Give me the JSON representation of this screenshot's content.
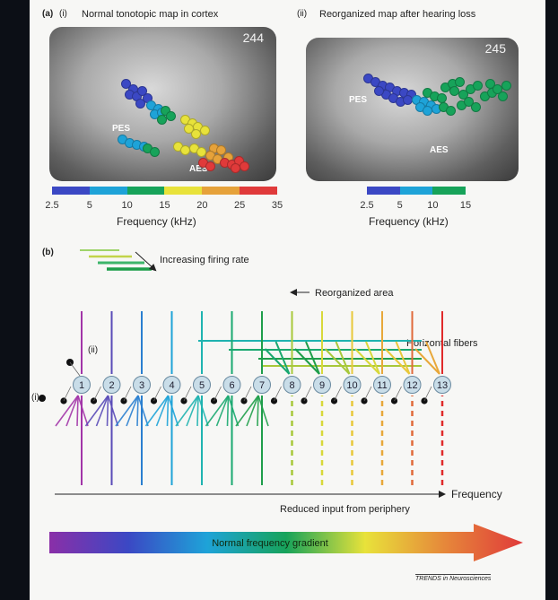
{
  "panel_a": {
    "label_a": "(a)",
    "left": {
      "tag": "(i)",
      "title": "Normal tonotopic map in cortex",
      "frame_id": "244",
      "regions": [
        "PES",
        "AES"
      ],
      "scale_colors": [
        "#3b48c4",
        "#1ea3d8",
        "#17a35a",
        "#e8e23a",
        "#e6a23a",
        "#e03a3a"
      ],
      "scale_ticks": [
        "2.5",
        "5",
        "10",
        "15",
        "20",
        "25",
        "35"
      ],
      "axis_label": "Frequency (kHz)"
    },
    "right": {
      "tag": "(ii)",
      "title": "Reorganized map after hearing loss",
      "frame_id": "245",
      "regions": [
        "PES",
        "AES"
      ],
      "scale_colors": [
        "#3b48c4",
        "#1ea3d8",
        "#17a35a"
      ],
      "scale_ticks": [
        "2.5",
        "5",
        "10",
        "15"
      ],
      "axis_label": "Frequency (kHz)"
    }
  },
  "panel_b": {
    "label_b": "(b)",
    "firing_rate_label": "Increasing firing rate",
    "reorganized_label": "Reorganized area",
    "horizontal_label": "Horizontal fibers",
    "marker_i": "(i)",
    "marker_ii": "(ii)",
    "neurons": [
      "1",
      "2",
      "3",
      "4",
      "5",
      "6",
      "7",
      "8",
      "9",
      "10",
      "11",
      "12",
      "13"
    ],
    "neuron_colors": [
      "#a235a8",
      "#5a4bb8",
      "#2a7fd0",
      "#1ea3d8",
      "#1fb3b0",
      "#1aa870",
      "#1f9e4a",
      "#a8c83a",
      "#d8d83a",
      "#e8c83a",
      "#e8a83a",
      "#e06a3a",
      "#e02a2a"
    ],
    "frequency_label": "Frequency",
    "reduced_input_label": "Reduced input from periphery",
    "gradient_label": "Normal frequency gradient",
    "gradient_colors": [
      "#8a2fa8",
      "#3b48c4",
      "#1ea3d8",
      "#17a35a",
      "#e8e23a",
      "#e6883a",
      "#e03a3a"
    ]
  },
  "journal": "TRENDS in Neurosciences"
}
